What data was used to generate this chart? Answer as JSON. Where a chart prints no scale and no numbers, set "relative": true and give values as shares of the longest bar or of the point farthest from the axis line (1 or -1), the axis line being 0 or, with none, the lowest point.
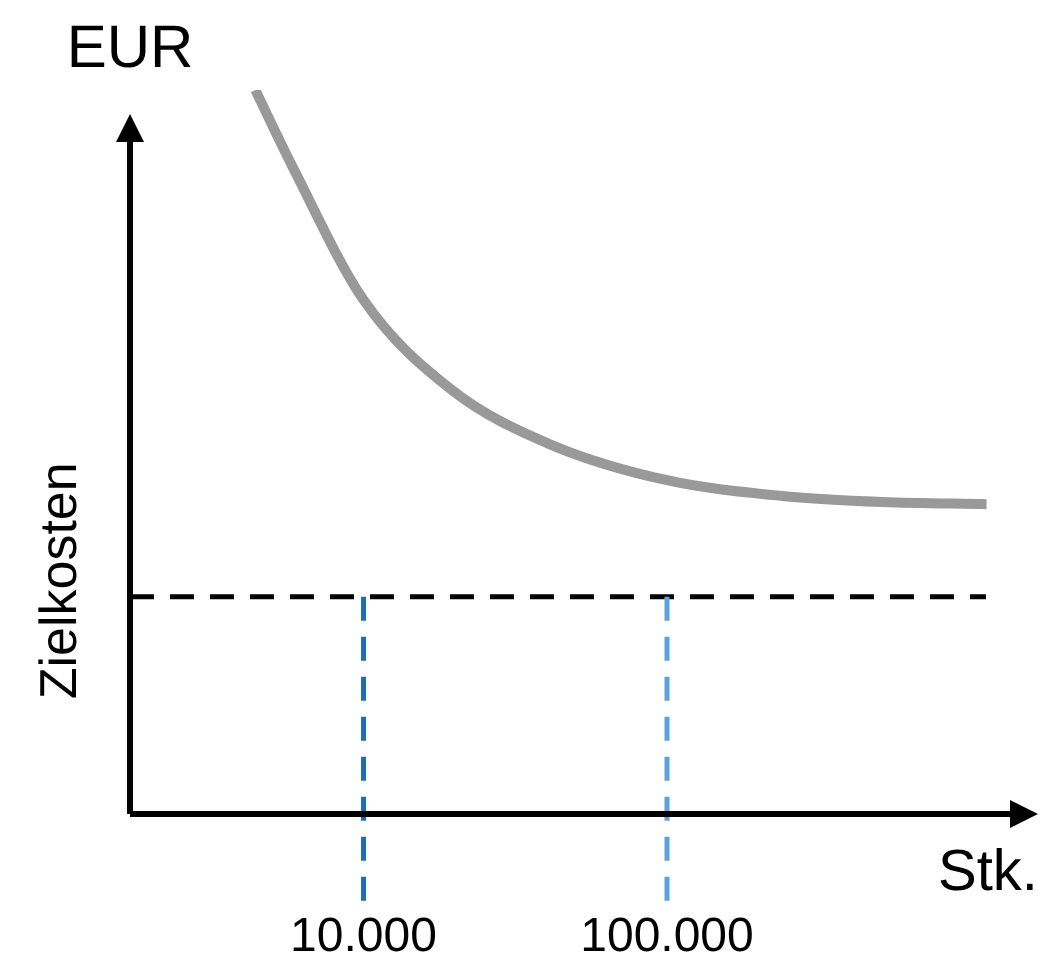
{
  "chart_data": {
    "type": "line",
    "relative": true,
    "xlabel": "Stk.",
    "ylabel": "EUR",
    "log": "x",
    "xlim": [
      1700,
      1350000
    ],
    "xticks": [
      {
        "value": 10000,
        "label": "10.000"
      },
      {
        "value": 100000,
        "label": "100.000"
      }
    ],
    "grid": false,
    "legend": false,
    "marker": "none",
    "line_style": "solid",
    "x": [
      4400,
      5900,
      10000,
      19500,
      41000,
      100000,
      244000,
      513000,
      1130000
    ],
    "series": [
      {
        "color": "#999999",
        "values": [
          1,
          0.89,
          0.71,
          0.586,
          0.511,
          0.461,
          0.439,
          0.431,
          0.428
        ]
      }
    ],
    "ref_lines": [
      {
        "axis": "y",
        "value": 0.3,
        "label": "Zielkosten",
        "color": "#000000",
        "line_style": "dashed"
      },
      {
        "axis": "x",
        "value": 10000,
        "color": "#1f6db3",
        "line_style": "dashed"
      },
      {
        "axis": "x",
        "value": 100000,
        "color": "#5ba3dc",
        "line_style": "dashed"
      }
    ]
  }
}
